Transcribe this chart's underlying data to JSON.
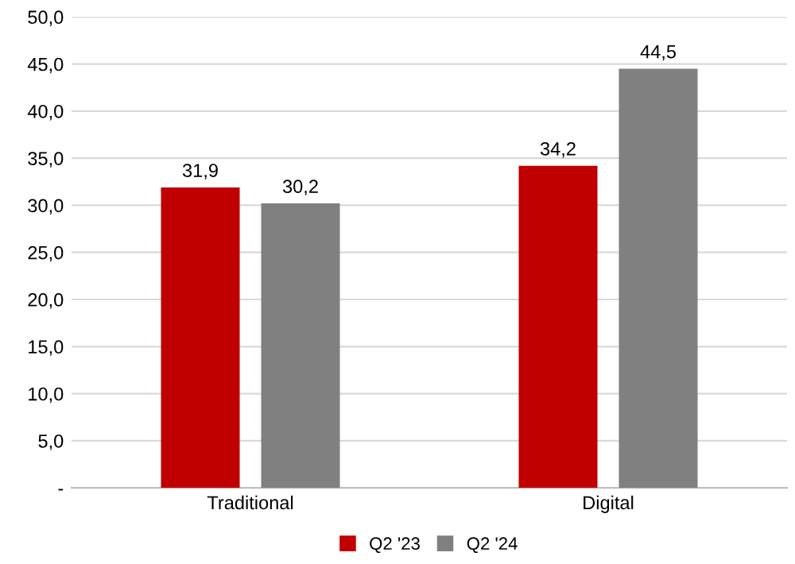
{
  "chart_data": {
    "type": "bar",
    "categories": [
      "Traditional",
      "Digital"
    ],
    "series": [
      {
        "name": "Q2 '23",
        "color": "#c00000",
        "values": [
          31.9,
          34.2
        ],
        "value_labels": [
          "31,9",
          "34,2"
        ]
      },
      {
        "name": "Q2 '24",
        "color": "#808080",
        "values": [
          30.2,
          44.5
        ],
        "value_labels": [
          "30,2",
          "44,5"
        ]
      }
    ],
    "ylim": [
      0,
      50
    ],
    "yticks": [
      {
        "value": 0,
        "label": "-"
      },
      {
        "value": 5,
        "label": "5,0"
      },
      {
        "value": 10,
        "label": "10,0"
      },
      {
        "value": 15,
        "label": "15,0"
      },
      {
        "value": 20,
        "label": "20,0"
      },
      {
        "value": 25,
        "label": "25,0"
      },
      {
        "value": 30,
        "label": "30,0"
      },
      {
        "value": 35,
        "label": "35,0"
      },
      {
        "value": 40,
        "label": "40,0"
      },
      {
        "value": 45,
        "label": "45,0"
      },
      {
        "value": 50,
        "label": "50,0"
      }
    ],
    "grid": "y",
    "legend": "bottom"
  }
}
